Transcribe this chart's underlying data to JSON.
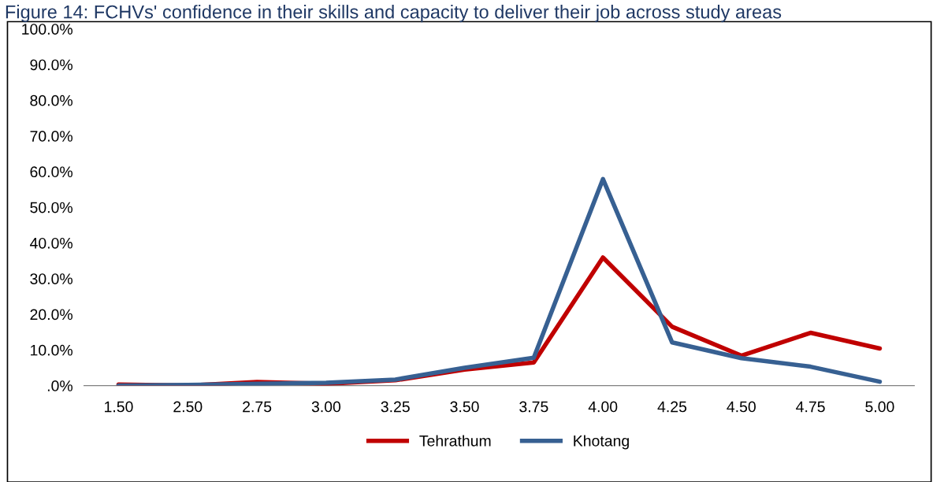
{
  "chart_data": {
    "type": "line",
    "title": "Figure 14: FCHVs' confidence in their skills and capacity to deliver their job across study areas",
    "categories": [
      "1.50",
      "2.50",
      "2.75",
      "3.00",
      "3.25",
      "3.50",
      "3.75",
      "4.00",
      "4.25",
      "4.50",
      "4.75",
      "5.00"
    ],
    "series": [
      {
        "name": "Tehrathum",
        "color": "#c00000",
        "values": [
          0.3,
          0.0,
          1.0,
          0.5,
          1.5,
          4.5,
          6.5,
          35.9,
          16.5,
          8.4,
          14.8,
          10.4
        ]
      },
      {
        "name": "Khotang",
        "color": "#376092",
        "values": [
          0.0,
          0.2,
          0.5,
          0.8,
          1.7,
          5.0,
          7.8,
          57.9,
          12.1,
          7.7,
          5.3,
          1.1
        ]
      }
    ],
    "ylim": [
      0,
      100
    ],
    "yticks": [
      {
        "value": 0,
        "label": ".0%"
      },
      {
        "value": 10,
        "label": "10.0%"
      },
      {
        "value": 20,
        "label": "20.0%"
      },
      {
        "value": 30,
        "label": "30.0%"
      },
      {
        "value": 40,
        "label": "40.0%"
      },
      {
        "value": 50,
        "label": "50.0%"
      },
      {
        "value": 60,
        "label": "60.0%"
      },
      {
        "value": 70,
        "label": "70.0%"
      },
      {
        "value": 80,
        "label": "80.0%"
      },
      {
        "value": 90,
        "label": "90.0%"
      },
      {
        "value": 100,
        "label": "100.0%"
      }
    ],
    "grid": false,
    "legend": "bottom",
    "marker": "none",
    "line_style": "solid"
  }
}
